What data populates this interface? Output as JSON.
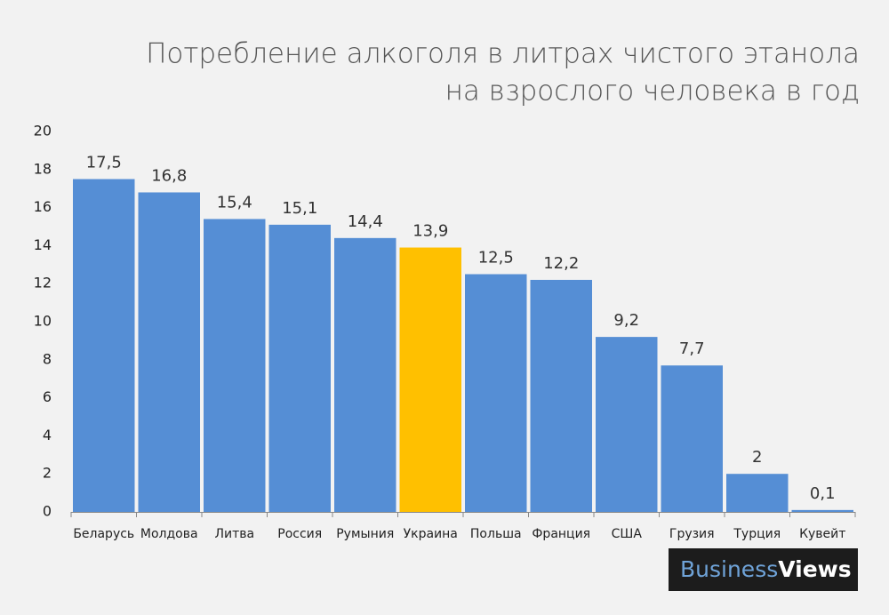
{
  "chart_data": {
    "type": "bar",
    "title": [
      "Потребление алкоголя в литрах чистого этанола",
      "на взрослого человека в год"
    ],
    "categories": [
      "Беларусь",
      "Молдова",
      "Литва",
      "Россия",
      "Румыния",
      "Украина",
      "Польша",
      "Франция",
      "США",
      "Грузия",
      "Турция",
      "Кувейт"
    ],
    "values": [
      17.5,
      16.8,
      15.4,
      15.1,
      14.4,
      13.9,
      12.5,
      12.2,
      9.2,
      7.7,
      2,
      0.1
    ],
    "value_labels": [
      "17,5",
      "16,8",
      "15,4",
      "15,1",
      "14,4",
      "13,9",
      "12,5",
      "12,2",
      "9,2",
      "7,7",
      "2",
      "0,1"
    ],
    "colors": [
      "#558ed5",
      "#558ed5",
      "#558ed5",
      "#558ed5",
      "#558ed5",
      "#ffc000",
      "#558ed5",
      "#558ed5",
      "#558ed5",
      "#558ed5",
      "#558ed5",
      "#558ed5"
    ],
    "ylim": [
      0,
      20
    ],
    "yticks": [
      0,
      2,
      4,
      6,
      8,
      10,
      12,
      14,
      16,
      18,
      20
    ],
    "grid": false
  },
  "logo": [
    "Business",
    "Views"
  ]
}
